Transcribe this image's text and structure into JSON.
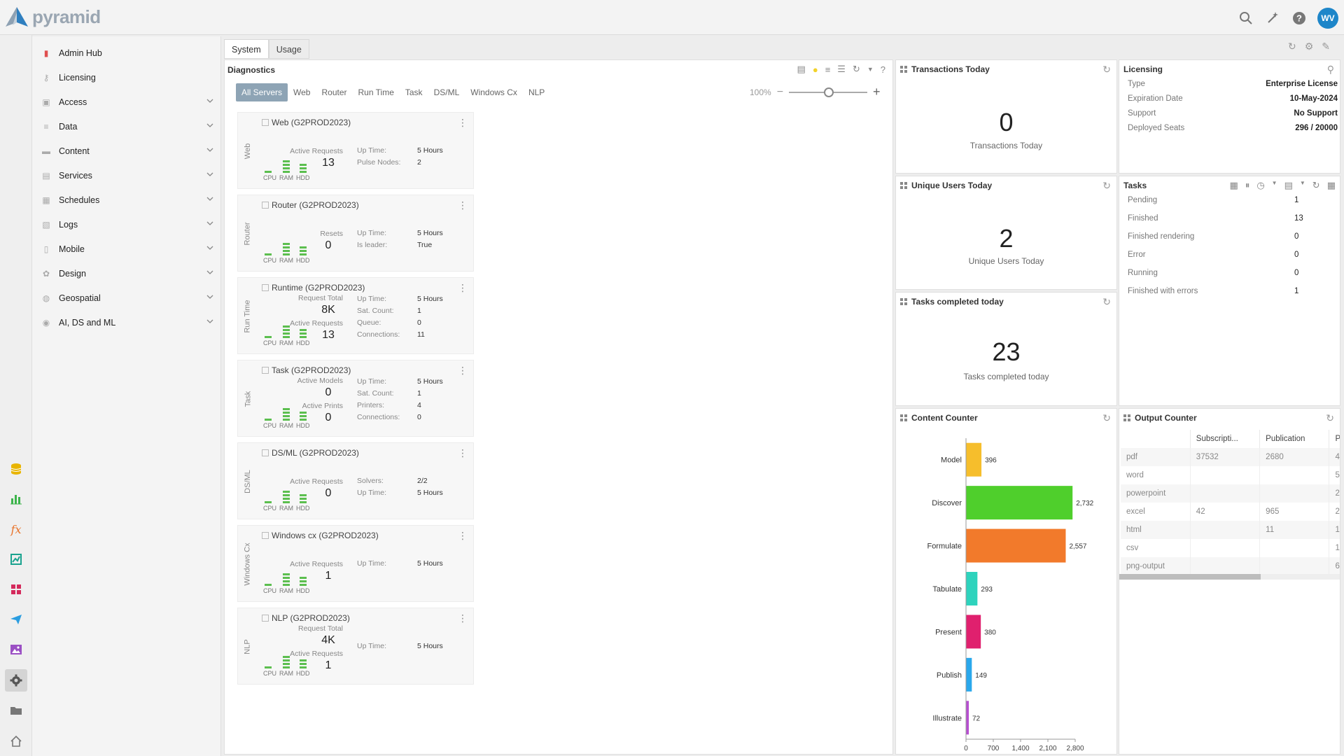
{
  "app": {
    "logo_text": "pyramid",
    "user_initials": "WV"
  },
  "topbar": {
    "icons": [
      "search-icon",
      "magic-wand-icon",
      "help-icon"
    ]
  },
  "rail": {
    "icons": [
      "database-icon",
      "bar-chart-icon",
      "formula-icon",
      "illustrate-icon",
      "grid-icon",
      "send-icon",
      "image-icon",
      "gear-icon",
      "folder-icon",
      "home-icon"
    ],
    "active": "gear-icon"
  },
  "sidebar": {
    "items": [
      {
        "label": "Admin Hub",
        "icon": "admin-hub-icon",
        "expandable": false
      },
      {
        "label": "Licensing",
        "icon": "key-icon",
        "expandable": false
      },
      {
        "label": "Access",
        "icon": "lock-icon",
        "expandable": true
      },
      {
        "label": "Data",
        "icon": "data-icon",
        "expandable": true
      },
      {
        "label": "Content",
        "icon": "folder-icon",
        "expandable": true
      },
      {
        "label": "Services",
        "icon": "services-icon",
        "expandable": true
      },
      {
        "label": "Schedules",
        "icon": "calendar-icon",
        "expandable": true
      },
      {
        "label": "Logs",
        "icon": "logs-icon",
        "expandable": true
      },
      {
        "label": "Mobile",
        "icon": "mobile-icon",
        "expandable": true
      },
      {
        "label": "Design",
        "icon": "design-icon",
        "expandable": true
      },
      {
        "label": "Geospatial",
        "icon": "globe-icon",
        "expandable": true
      },
      {
        "label": "AI, DS and ML",
        "icon": "ai-icon",
        "expandable": true
      }
    ]
  },
  "main_tabs": [
    {
      "label": "System",
      "active": true
    },
    {
      "label": "Usage",
      "active": false
    }
  ],
  "diagnostics": {
    "title": "Diagnostics",
    "filters": [
      "All Servers",
      "Web",
      "Router",
      "Run Time",
      "Task",
      "DS/ML",
      "Windows Cx",
      "NLP"
    ],
    "active_filter": "All Servers",
    "zoom": "100%",
    "gauge_labels": {
      "cpu": "CPU",
      "ram": "RAM",
      "hdd": "HDD"
    },
    "servers": [
      {
        "side_label": "Web",
        "title": "Web (G2PROD2023)",
        "metrics": [
          {
            "label": "Active Requests",
            "value": "13"
          }
        ],
        "kv": [
          {
            "k": "Up Time:",
            "v": "5 Hours"
          },
          {
            "k": "Pulse Nodes:",
            "v": "2"
          }
        ]
      },
      {
        "side_label": "Router",
        "title": "Router (G2PROD2023)",
        "metrics": [
          {
            "label": "Resets",
            "value": "0"
          }
        ],
        "kv": [
          {
            "k": "Up Time:",
            "v": "5 Hours"
          },
          {
            "k": "Is leader:",
            "v": "True"
          }
        ]
      },
      {
        "side_label": "Run Time",
        "title": "Runtime (G2PROD2023)",
        "metrics": [
          {
            "label": "Request Total",
            "value": "8K"
          },
          {
            "label": "Active Requests",
            "value": "13"
          }
        ],
        "kv": [
          {
            "k": "Up Time:",
            "v": "5 Hours"
          },
          {
            "k": "Sat. Count:",
            "v": "1"
          },
          {
            "k": "Queue:",
            "v": "0"
          },
          {
            "k": "Connections:",
            "v": "11"
          }
        ]
      },
      {
        "side_label": "Task",
        "title": "Task (G2PROD2023)",
        "metrics": [
          {
            "label": "Active Models",
            "value": "0"
          },
          {
            "label": "Active Prints",
            "value": "0"
          }
        ],
        "kv": [
          {
            "k": "Up Time:",
            "v": "5 Hours"
          },
          {
            "k": "Sat. Count:",
            "v": "1"
          },
          {
            "k": "Printers:",
            "v": "4"
          },
          {
            "k": "Connections:",
            "v": "0"
          }
        ]
      },
      {
        "side_label": "DS/ML",
        "title": "DS/ML (G2PROD2023)",
        "metrics": [
          {
            "label": "Active Requests",
            "value": "0"
          }
        ],
        "kv": [
          {
            "k": "Solvers:",
            "v": "2/2"
          },
          {
            "k": "Up Time:",
            "v": "5 Hours"
          }
        ]
      },
      {
        "side_label": "Windows Cx",
        "title": "Windows cx (G2PROD2023)",
        "metrics": [
          {
            "label": "Active Requests",
            "value": "1"
          }
        ],
        "kv": [
          {
            "k": "Up Time:",
            "v": "5 Hours"
          }
        ]
      },
      {
        "side_label": "NLP",
        "title": "NLP (G2PROD2023)",
        "metrics": [
          {
            "label": "Request Total",
            "value": "4K"
          },
          {
            "label": "Active Requests",
            "value": "1"
          }
        ],
        "kv": [
          {
            "k": "Up Time:",
            "v": "5 Hours"
          }
        ]
      }
    ]
  },
  "transactions": {
    "title": "Transactions Today",
    "value": "0",
    "caption": "Transactions Today"
  },
  "unique_users": {
    "title": "Unique Users Today",
    "value": "2",
    "caption": "Unique Users Today"
  },
  "tasks_completed": {
    "title": "Tasks completed today",
    "value": "23",
    "caption": "Tasks completed today"
  },
  "licensing": {
    "title": "Licensing",
    "rows": [
      {
        "k": "Type",
        "v": "Enterprise License"
      },
      {
        "k": "Expiration Date",
        "v": "10-May-2024"
      },
      {
        "k": "Support",
        "v": "No Support"
      },
      {
        "k": "Deployed Seats",
        "v": "296 / 20000"
      }
    ]
  },
  "tasks": {
    "title": "Tasks",
    "rows": [
      {
        "k": "Pending",
        "v": "1"
      },
      {
        "k": "Finished",
        "v": "13"
      },
      {
        "k": "Finished rendering",
        "v": "0"
      },
      {
        "k": "Error",
        "v": "0"
      },
      {
        "k": "Running",
        "v": "0"
      },
      {
        "k": "Finished with errors",
        "v": "1"
      }
    ]
  },
  "content_counter": {
    "title": "Content Counter"
  },
  "chart_data": {
    "type": "bar",
    "orientation": "horizontal",
    "categories": [
      "Model",
      "Discover",
      "Formulate",
      "Tabulate",
      "Present",
      "Publish",
      "Illustrate"
    ],
    "values": [
      396,
      2732,
      2557,
      293,
      380,
      149,
      72
    ],
    "value_labels": [
      "396",
      "2,732",
      "2,557",
      "293",
      "380",
      "149",
      "72"
    ],
    "colors": [
      "#f6be2c",
      "#4fcf2c",
      "#f27a2b",
      "#2ed3bd",
      "#e0206e",
      "#2aa8ec",
      "#b74fd1"
    ],
    "xlim": [
      0,
      2800
    ],
    "xticks": [
      "0",
      "700",
      "1,400",
      "2,100",
      "2,800"
    ],
    "grid": false
  },
  "output_counter": {
    "title": "Output Counter",
    "columns": [
      "",
      "Subscripti...",
      "Publication",
      "Pr"
    ],
    "rows": [
      [
        "pdf",
        "37532",
        "2680",
        "4"
      ],
      [
        "word",
        "",
        "",
        "5"
      ],
      [
        "powerpoint",
        "",
        "",
        "2"
      ],
      [
        "excel",
        "42",
        "965",
        "2"
      ],
      [
        "html",
        "",
        "11",
        "1"
      ],
      [
        "csv",
        "",
        "",
        "1"
      ],
      [
        "png-output",
        "",
        "",
        "6"
      ]
    ]
  }
}
